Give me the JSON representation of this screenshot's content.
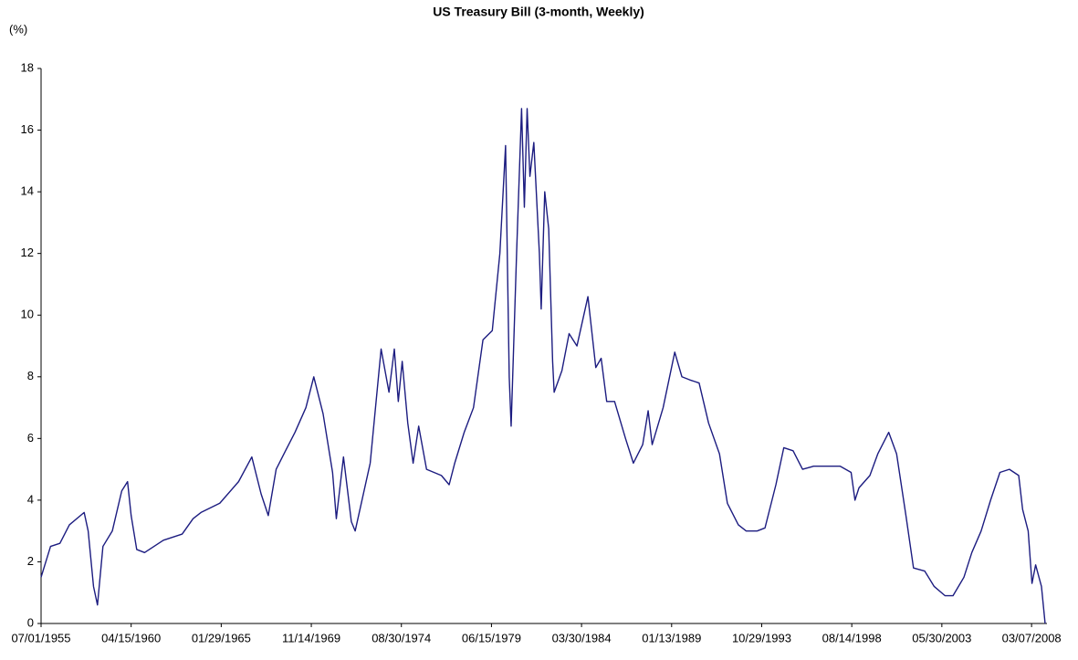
{
  "chart_data": {
    "type": "line",
    "title": "US Treasury Bill (3-month, Weekly)",
    "y_label": "(%)",
    "x": [
      "07/01/1955",
      "01/01/1956",
      "07/01/1956",
      "01/01/1957",
      "10/15/1957",
      "01/01/1958",
      "04/15/1958",
      "07/01/1958",
      "10/15/1958",
      "04/15/1959",
      "10/15/1959",
      "02/05/1960",
      "04/15/1960",
      "08/01/1960",
      "01/01/1961",
      "01/01/1962",
      "01/01/1963",
      "08/01/1963",
      "01/01/1964",
      "01/01/1965",
      "01/01/1966",
      "09/15/1966",
      "03/15/1967",
      "08/01/1967",
      "01/01/1968",
      "07/01/1968",
      "01/01/1969",
      "08/01/1969",
      "01/01/1970",
      "07/01/1970",
      "01/01/1971",
      "03/15/1971",
      "08/01/1971",
      "01/01/1972",
      "03/15/1972",
      "01/01/1973",
      "08/01/1973",
      "01/01/1974",
      "04/15/1974",
      "07/01/1974",
      "09/15/1974",
      "01/01/1975",
      "04/15/1975",
      "08/01/1975",
      "01/01/1976",
      "10/15/1976",
      "03/15/1977",
      "07/01/1977",
      "01/01/1978",
      "07/01/1978",
      "01/01/1979",
      "07/01/1979",
      "11/25/1979",
      "03/15/1980",
      "05/25/1980",
      "07/01/1980",
      "10/15/1980",
      "01/20/1981",
      "03/15/1981",
      "05/08/1981",
      "07/01/1981",
      "09/15/1981",
      "01/01/1982",
      "02/05/1982",
      "04/15/1982",
      "07/01/1982",
      "09/15/1982",
      "10/15/1982",
      "03/15/1983",
      "08/01/1983",
      "01/01/1984",
      "08/01/1984",
      "01/01/1985",
      "04/15/1985",
      "08/01/1985",
      "01/01/1986",
      "08/01/1986",
      "01/01/1987",
      "07/01/1987",
      "10/15/1987",
      "01/01/1988",
      "08/01/1988",
      "03/15/1989",
      "08/01/1989",
      "01/01/1990",
      "07/01/1990",
      "01/01/1991",
      "08/01/1991",
      "01/01/1992",
      "08/01/1992",
      "01/01/1993",
      "08/01/1993",
      "01/01/1994",
      "08/01/1994",
      "01/01/1995",
      "07/01/1995",
      "01/01/1996",
      "08/01/1996",
      "01/01/1997",
      "08/01/1997",
      "01/01/1998",
      "08/01/1998",
      "10/15/1998",
      "01/01/1999",
      "08/01/1999",
      "01/01/2000",
      "08/01/2000",
      "01/01/2001",
      "07/01/2001",
      "11/25/2001",
      "07/01/2002",
      "01/01/2003",
      "08/01/2003",
      "01/01/2004",
      "08/01/2004",
      "01/01/2005",
      "07/01/2005",
      "01/01/2006",
      "07/01/2006",
      "01/01/2007",
      "07/01/2007",
      "09/15/2007",
      "01/01/2008",
      "03/15/2008",
      "05/25/2008",
      "09/15/2008",
      "11/25/2008"
    ],
    "series": [
      {
        "name": "3-month T-Bill",
        "color": "#1c1c80",
        "values": [
          1.5,
          2.5,
          2.6,
          3.2,
          3.6,
          3.0,
          1.2,
          0.6,
          2.5,
          3.0,
          4.3,
          4.6,
          3.5,
          2.4,
          2.3,
          2.7,
          2.9,
          3.4,
          3.6,
          3.9,
          4.6,
          5.4,
          4.2,
          3.5,
          5.0,
          5.6,
          6.2,
          7.0,
          8.0,
          6.8,
          4.9,
          3.4,
          5.4,
          3.3,
          3.0,
          5.2,
          8.9,
          7.5,
          8.9,
          7.2,
          8.5,
          6.5,
          5.2,
          6.4,
          5.0,
          4.8,
          4.5,
          5.2,
          6.2,
          7.0,
          9.2,
          9.5,
          12.0,
          15.5,
          8.0,
          6.4,
          12.0,
          16.7,
          13.5,
          16.7,
          14.5,
          15.6,
          12.0,
          10.2,
          14.0,
          12.8,
          8.5,
          7.5,
          8.2,
          9.4,
          9.0,
          10.6,
          8.3,
          8.6,
          7.2,
          7.2,
          6.0,
          5.2,
          5.8,
          6.9,
          5.8,
          7.0,
          8.8,
          8.0,
          7.9,
          7.8,
          6.5,
          5.5,
          3.9,
          3.2,
          3.0,
          3.0,
          3.1,
          4.5,
          5.7,
          5.6,
          5.0,
          5.1,
          5.1,
          5.1,
          5.1,
          4.9,
          4.0,
          4.4,
          4.8,
          5.5,
          6.2,
          5.5,
          3.5,
          1.8,
          1.7,
          1.2,
          0.9,
          0.9,
          1.5,
          2.3,
          3.0,
          4.0,
          4.9,
          5.0,
          4.8,
          3.7,
          3.0,
          1.3,
          1.9,
          1.2,
          0.0
        ]
      }
    ],
    "xlim": [
      "07/01/1955",
      "12/31/2008"
    ],
    "xticks": [
      "07/01/1955",
      "04/15/1960",
      "01/29/1965",
      "11/14/1969",
      "08/30/1974",
      "06/15/1979",
      "03/30/1984",
      "01/13/1989",
      "10/29/1993",
      "08/14/1998",
      "05/30/2003",
      "03/07/2008"
    ],
    "ylim": [
      0,
      18
    ],
    "yticks": [
      0,
      2,
      4,
      6,
      8,
      10,
      12,
      14,
      16,
      18
    ],
    "grid": false
  }
}
